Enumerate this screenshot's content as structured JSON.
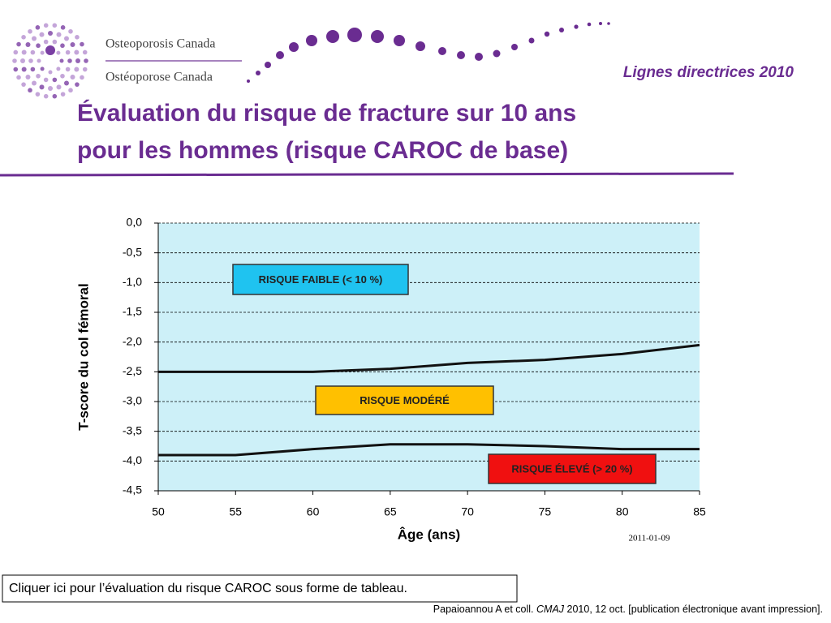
{
  "header": {
    "org_en": "Osteoporosis Canada",
    "org_fr": "Ostéoporose Canada",
    "guidelines": "Lignes directrices 2010",
    "title_line1": "Évaluation du risque de fracture sur 10 ans",
    "title_line2": "pour les hommes (risque CAROC de base)"
  },
  "chart_data": {
    "type": "line",
    "x_label": "Âge (ans)",
    "y_label": "T-score du col fémoral",
    "date_stamp": "2011-01-09",
    "x": [
      50,
      55,
      60,
      65,
      70,
      75,
      80,
      85
    ],
    "series": [
      {
        "color": "#111111",
        "values": [
          -2.5,
          -2.5,
          -2.5,
          -2.45,
          -2.35,
          -2.3,
          -2.2,
          -2.05
        ]
      },
      {
        "color": "#111111",
        "values": [
          -3.9,
          -3.9,
          -3.8,
          -3.72,
          -3.72,
          -3.75,
          -3.8,
          -3.8
        ]
      }
    ],
    "xlim": [
      50,
      85
    ],
    "xticks": [
      50,
      55,
      60,
      65,
      70,
      75,
      80,
      85
    ],
    "ylim": [
      -4.5,
      0
    ],
    "yticks": [
      {
        "value": 0,
        "label": "0,0"
      },
      {
        "value": -0.5,
        "label": "-0,5"
      },
      {
        "value": -1,
        "label": "-1,0"
      },
      {
        "value": -1.5,
        "label": "-1,5"
      },
      {
        "value": -2,
        "label": "-2,0"
      },
      {
        "value": -2.5,
        "label": "-2,5"
      },
      {
        "value": -3,
        "label": "-3,0"
      },
      {
        "value": -3.5,
        "label": "-3,5"
      },
      {
        "value": -4,
        "label": "-4,0"
      },
      {
        "value": -4.5,
        "label": "-4,5"
      }
    ],
    "grid": true,
    "plot_background": "#cdf0f8",
    "annotations": [
      {
        "text": "RISQUE FAIBLE (< 10 %)",
        "color": "#1fc3f0"
      },
      {
        "text": "RISQUE MODÉRÉ",
        "color": "#ffc000"
      },
      {
        "text": "RISQUE ÉLEVÉ (> 20 %)",
        "color": "#f01010"
      }
    ]
  },
  "footer": {
    "link": "Cliquer ici pour l’évaluation du risque CAROC sous forme de tableau.",
    "citation_authors": "Papaioannou A et coll.",
    "citation_journal": "CMAJ",
    "citation_details": "2010, 12 oct. [publication électronique avant impression]."
  }
}
